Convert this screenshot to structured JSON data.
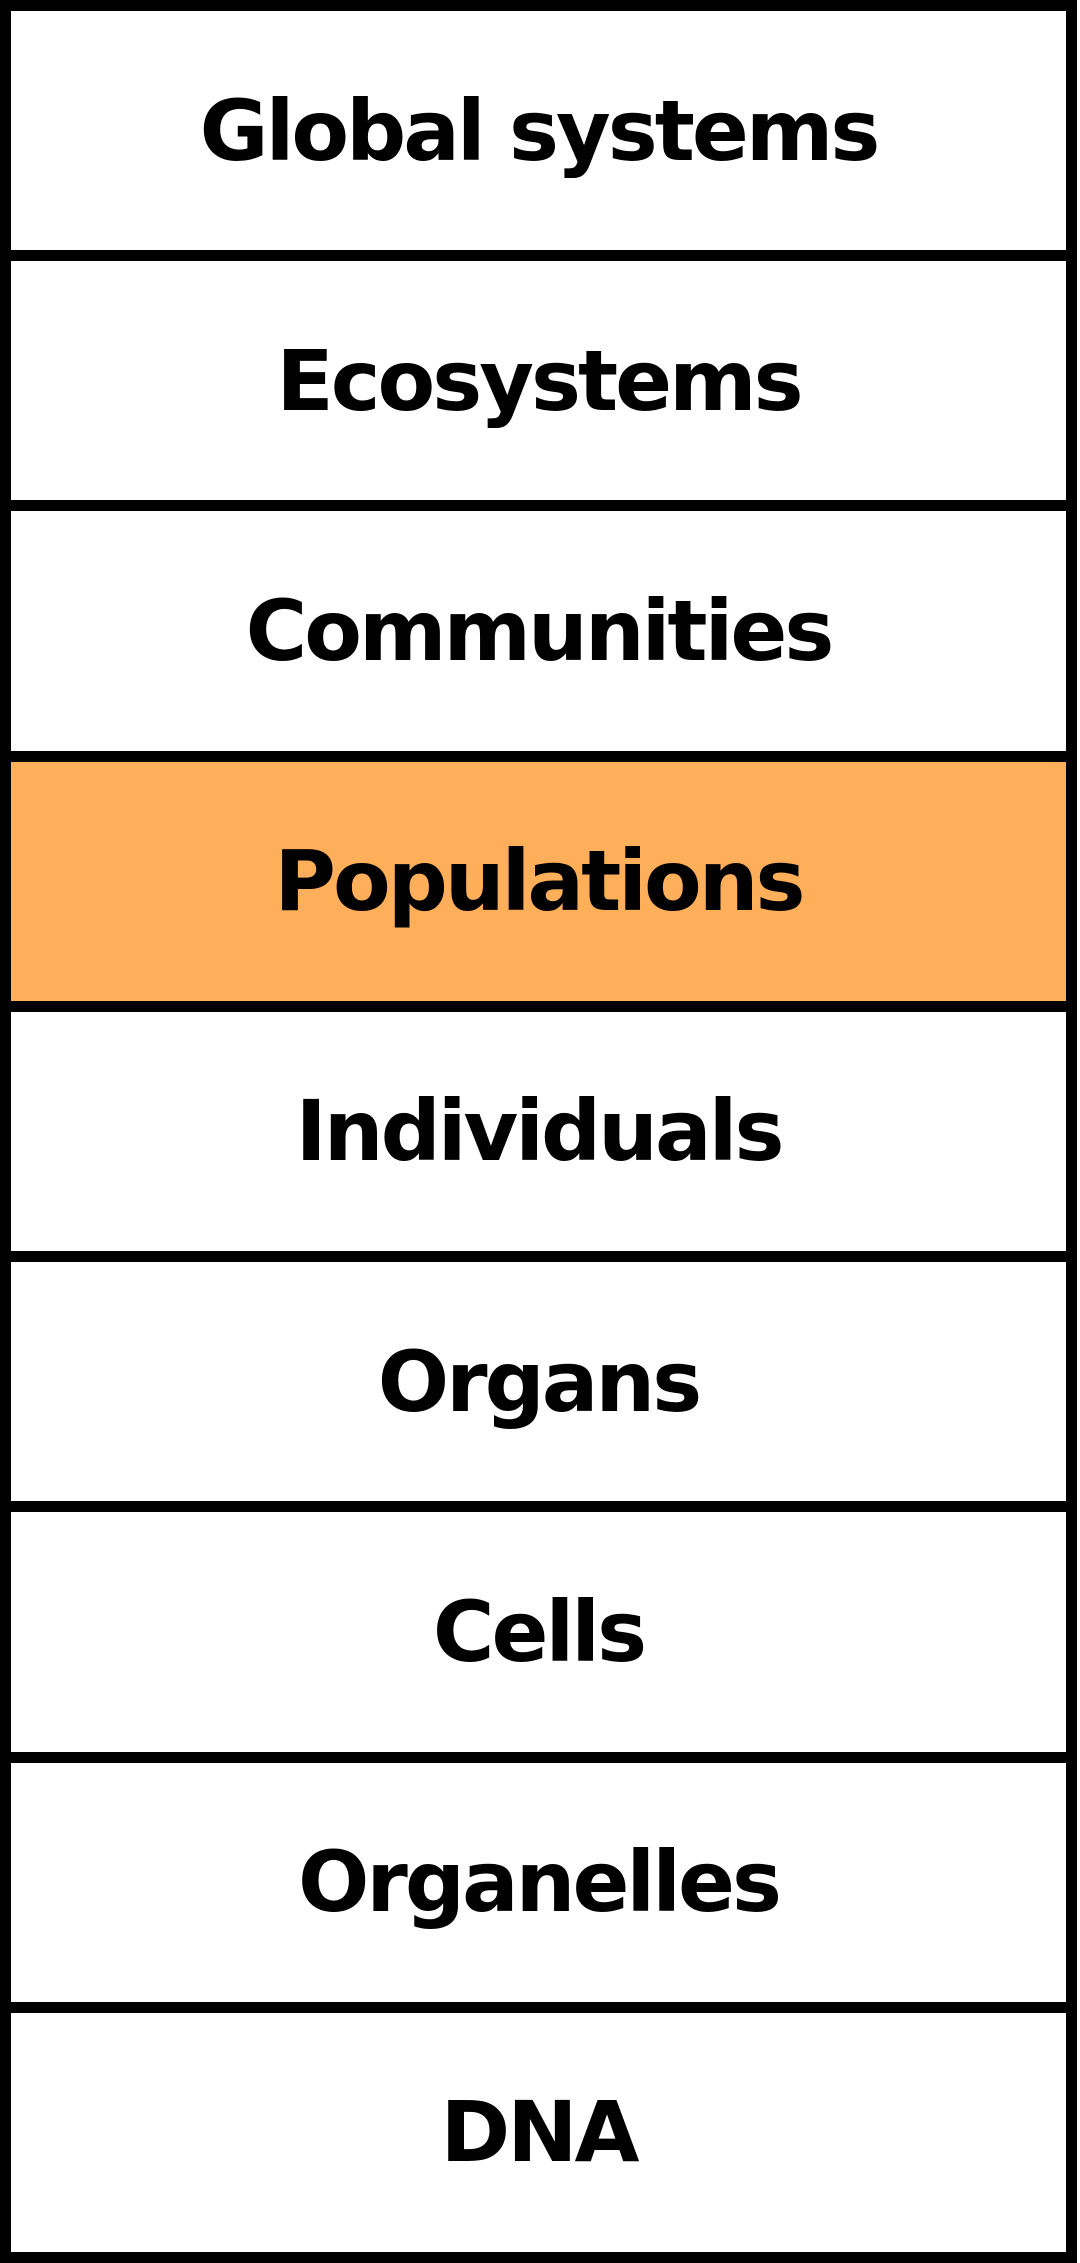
{
  "levels": [
    {
      "label": "Global systems",
      "highlighted": false
    },
    {
      "label": "Ecosystems",
      "highlighted": false
    },
    {
      "label": "Communities",
      "highlighted": false
    },
    {
      "label": "Populations",
      "highlighted": true
    },
    {
      "label": "Individuals",
      "highlighted": false
    },
    {
      "label": "Organs",
      "highlighted": false
    },
    {
      "label": "Cells",
      "highlighted": false
    },
    {
      "label": "Organelles",
      "highlighted": false
    },
    {
      "label": "DNA",
      "highlighted": false
    }
  ],
  "colors": {
    "highlight": "#FFAF59",
    "background": "#FFFFFF",
    "border": "#000000",
    "text": "#000000"
  }
}
